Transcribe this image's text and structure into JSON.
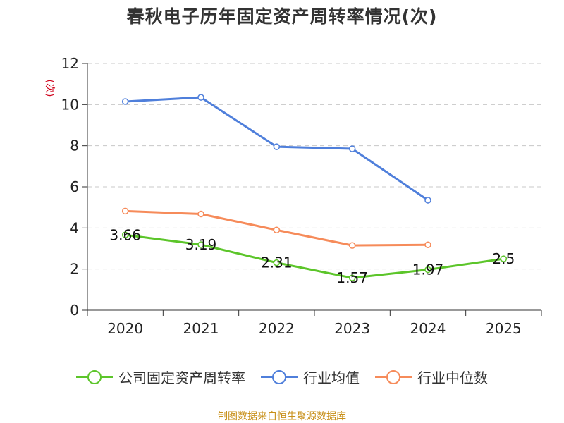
{
  "colors": {
    "company": "#5cc52a",
    "industry_mean": "#4f7fdb",
    "industry_median": "#f68b5a",
    "ylabel": "#d0021b",
    "source": "#c8901a"
  },
  "legend": [
    {
      "label": "公司固定资产周转率",
      "color": "#5cc52a"
    },
    {
      "label": "行业均值",
      "color": "#4f7fdb"
    },
    {
      "label": "行业中位数",
      "color": "#f68b5a"
    }
  ],
  "source": "制图数据来自恒生聚源数据库",
  "chart_data": {
    "type": "line",
    "title": "春秋电子历年固定资产周转率情况(次)",
    "ylabel": "(次)",
    "xlabel": "",
    "categories": [
      "2020",
      "2021",
      "2022",
      "2023",
      "2024",
      "2025"
    ],
    "ylim": [
      0,
      12
    ],
    "yticks": [
      0,
      2,
      4,
      6,
      8,
      10,
      12
    ],
    "grid": true,
    "legend_position": "bottom",
    "series": [
      {
        "name": "公司固定资产周转率",
        "values": [
          3.66,
          3.19,
          2.31,
          1.57,
          1.97,
          2.5
        ],
        "labels": [
          "3.66",
          "3.19",
          "2.31",
          "1.57",
          "1.97",
          "2.5"
        ]
      },
      {
        "name": "行业均值",
        "values": [
          10.15,
          10.35,
          7.95,
          7.85,
          5.35,
          null
        ]
      },
      {
        "name": "行业中位数",
        "values": [
          4.82,
          4.68,
          3.9,
          3.15,
          3.18,
          null
        ]
      }
    ]
  }
}
